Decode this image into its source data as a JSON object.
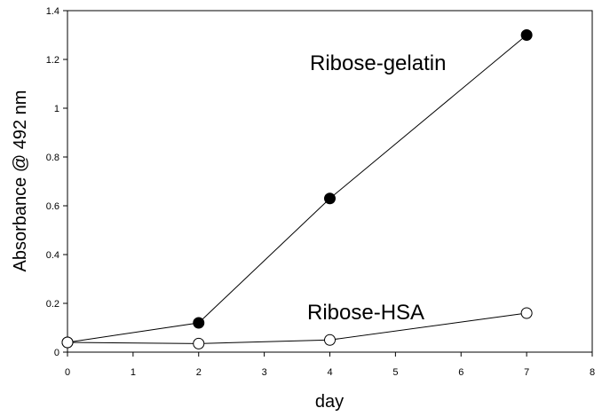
{
  "chart_data": {
    "type": "line",
    "xlabel": "day",
    "ylabel": "Absorbance @ 492 nm",
    "xlim": [
      0,
      8
    ],
    "ylim": [
      0,
      1.4
    ],
    "xticks": [
      "0",
      "1",
      "2",
      "3",
      "4",
      "5",
      "6",
      "7",
      "8"
    ],
    "yticks": [
      "0",
      "0.2",
      "0.4",
      "0.6",
      "0.8",
      "1",
      "1.2",
      "1.4"
    ],
    "grid": false,
    "legend": "none",
    "series": [
      {
        "name": "Ribose-gelatin",
        "marker": "filled-circle",
        "x": [
          0,
          2,
          4,
          7
        ],
        "y": [
          0.04,
          0.12,
          0.63,
          1.3
        ]
      },
      {
        "name": "Ribose-HSA",
        "marker": "open-circle",
        "x": [
          0,
          2,
          4,
          7
        ],
        "y": [
          0.04,
          0.035,
          0.05,
          0.16
        ]
      }
    ]
  }
}
